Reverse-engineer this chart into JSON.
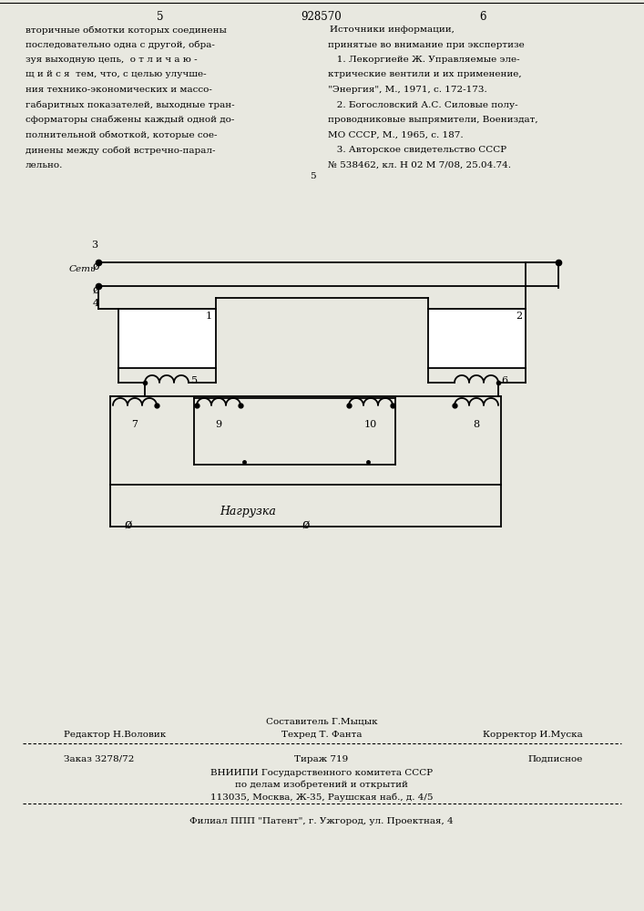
{
  "bg_color": "#e8e8e0",
  "page_num_left": "5",
  "page_num_center": "928570",
  "page_num_right": "6",
  "left_text": [
    "вторичные обмотки которых соединены",
    "последовательно одна с другой, обра-",
    "зуя выходную цепь,  о т л и ч а ю -",
    "щ и й с я  тем, что, с целью улучше-",
    "ния технико-экономических и массо-",
    "габаритных показателей, выходные тран-",
    "сформаторы снабжены каждый одной до-",
    "полнительной обмоткой, которые сое-",
    "динены между собой встречно-парал-",
    "лельно."
  ],
  "right_title": "Источники информации,",
  "right_subtitle": "принятые во внимание при экспертизе",
  "right_refs": [
    "   1. Лекоргиейе Ж. Управляемые эле-",
    "ктрические вентили и их применение,",
    "\"Энергия\", М., 1971, с. 172-173.",
    "   2. Богословский А.С. Силовые полу-",
    "проводниковые выпрямители, Воениздат,",
    "МО СССР, М., 1965, с. 187.",
    "   3. Авторское свидетельство СССР",
    "№ 538462, кл. Н 02 М 7/08, 25.04.74."
  ],
  "f1": "Составитель Г.Мыцык",
  "f2l": "Редактор Н.Воловик",
  "f2c": "Техред Т. Фанта",
  "f2r": "Корректор И.Муска",
  "f3l": "Заказ 3278/72",
  "f3c": "Тираж 719",
  "f3r": "Подписное",
  "f4": "ВНИИПИ Государственного комитета СССР",
  "f5": "по делам изобретений и открытий",
  "f6": "113035, Москва, Ж-35, Раушская наб., д. 4/5",
  "f7": "Филиал ППП \"Патент\", г. Ужгород, ул. Проектная, 4"
}
